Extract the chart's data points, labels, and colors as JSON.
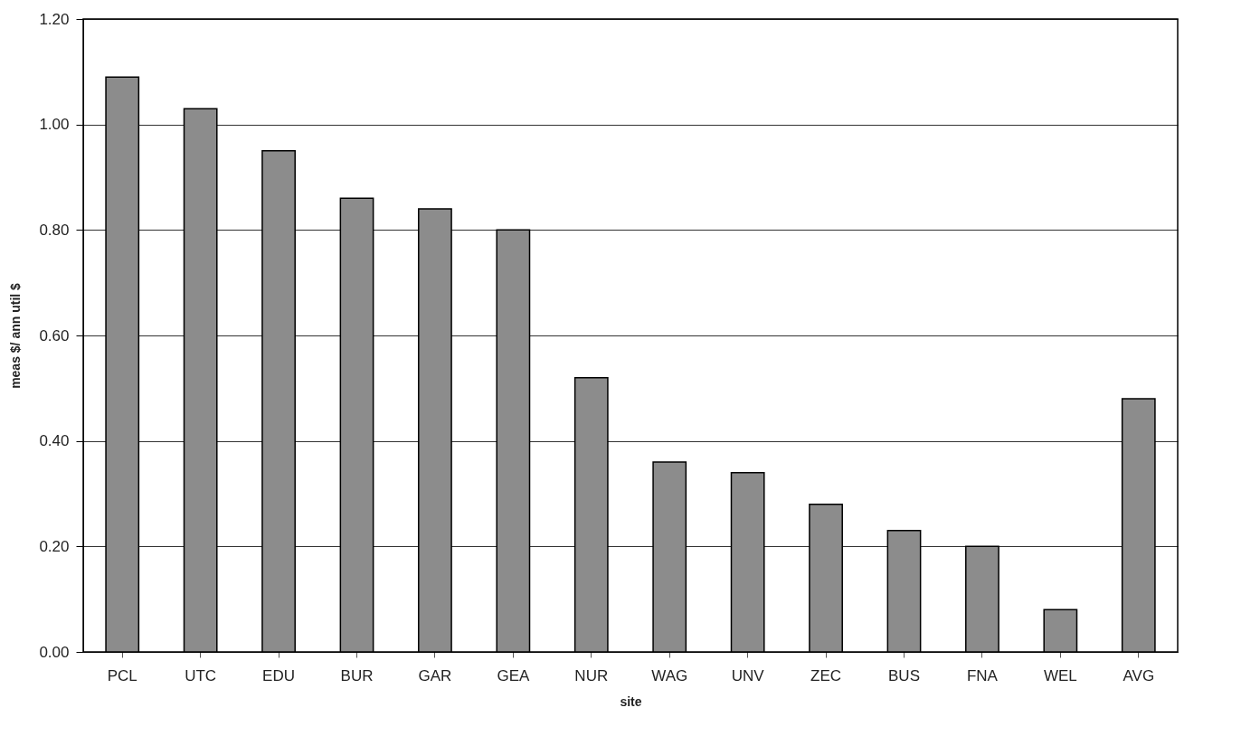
{
  "chart_data": {
    "type": "bar",
    "xlabel": "site",
    "ylabel": "meas $/ ann util $",
    "categories": [
      "PCL",
      "UTC",
      "EDU",
      "BUR",
      "GAR",
      "GEA",
      "NUR",
      "WAG",
      "UNV",
      "ZEC",
      "BUS",
      "FNA",
      "WEL",
      "AVG"
    ],
    "values": [
      1.09,
      1.03,
      0.95,
      0.86,
      0.84,
      0.8,
      0.52,
      0.36,
      0.34,
      0.28,
      0.23,
      0.2,
      0.08,
      0.48
    ],
    "color": "#8c8c8c",
    "ylim": [
      0,
      1.2
    ],
    "yticks": [
      {
        "value": 0,
        "label": "0.00"
      },
      {
        "value": 0.2,
        "label": "0.20"
      },
      {
        "value": 0.4,
        "label": "0.40"
      },
      {
        "value": 0.6,
        "label": "0.60"
      },
      {
        "value": 0.8,
        "label": "0.80"
      },
      {
        "value": 1.0,
        "label": "1.00"
      },
      {
        "value": 1.2,
        "label": "1.20"
      }
    ],
    "grid": "y"
  }
}
